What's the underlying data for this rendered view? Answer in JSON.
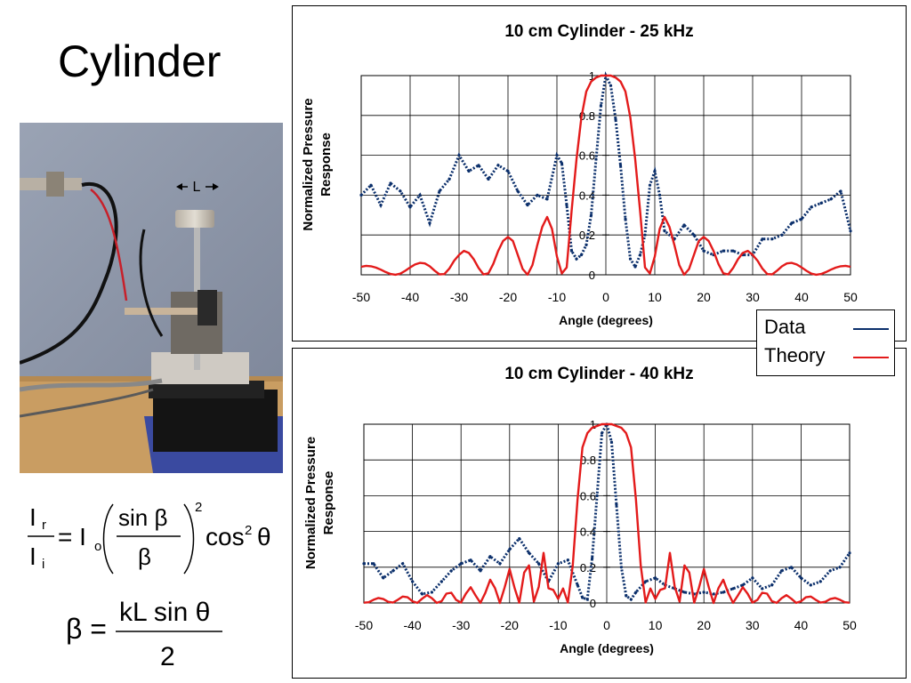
{
  "slide": {
    "title": "Cylinder"
  },
  "photo": {
    "label": "L"
  },
  "legend": [
    {
      "name": "Data",
      "color": "#0b2f6b"
    },
    {
      "name": "Theory",
      "color": "#e31b1b"
    }
  ],
  "formula": {
    "line1": {
      "ir": "I",
      "ir_sub": "r",
      "ii": "I",
      "ii_sub": "i",
      "eq": "= I",
      "io_sub": "o",
      "num": "sin β",
      "den": "β",
      "pow": "2",
      "tail": "cos",
      "tail_pow": "2",
      "theta": "θ"
    },
    "line2": {
      "lhs": "β =",
      "num": "kL sin θ",
      "den": "2"
    }
  },
  "chart_data": [
    {
      "type": "line",
      "title": "10 cm Cylinder - 25 kHz",
      "xlabel": "Angle (degrees)",
      "ylabel": "Normalized Pressure Response",
      "xlim": [
        -50,
        50
      ],
      "ylim": [
        0,
        1
      ],
      "xticks": [
        "-50",
        "-40",
        "-30",
        "-20",
        "-10",
        "0",
        "10",
        "20",
        "30",
        "40",
        "50"
      ],
      "yticks": [
        "0",
        "0.2",
        "0.4",
        "0.6",
        "0.8",
        "1"
      ],
      "grid": true,
      "series": [
        {
          "name": "Data",
          "x": [
            -50,
            -48,
            -46,
            -44,
            -42,
            -40,
            -38,
            -36,
            -34,
            -32,
            -30,
            -28,
            -26,
            -24,
            -22,
            -20,
            -18,
            -16,
            -14,
            -12,
            -10,
            -9,
            -8,
            -7,
            -6,
            -5,
            -4,
            -3,
            -2,
            -1,
            0,
            1,
            2,
            3,
            4,
            5,
            6,
            7,
            8,
            9,
            10,
            11,
            12,
            14,
            16,
            18,
            20,
            22,
            24,
            26,
            28,
            30,
            32,
            34,
            36,
            38,
            40,
            42,
            44,
            46,
            48,
            50
          ],
          "y": [
            0.4,
            0.45,
            0.35,
            0.46,
            0.42,
            0.34,
            0.4,
            0.26,
            0.42,
            0.48,
            0.6,
            0.52,
            0.55,
            0.48,
            0.55,
            0.52,
            0.42,
            0.35,
            0.4,
            0.38,
            0.6,
            0.56,
            0.35,
            0.12,
            0.08,
            0.1,
            0.15,
            0.3,
            0.58,
            0.85,
            1.0,
            0.95,
            0.78,
            0.55,
            0.28,
            0.08,
            0.04,
            0.1,
            0.2,
            0.45,
            0.52,
            0.4,
            0.22,
            0.18,
            0.25,
            0.2,
            0.12,
            0.1,
            0.12,
            0.12,
            0.1,
            0.1,
            0.18,
            0.18,
            0.2,
            0.26,
            0.28,
            0.34,
            0.36,
            0.38,
            0.42,
            0.22
          ]
        },
        {
          "name": "Theory",
          "x": [
            -50,
            -49,
            -48,
            -47,
            -46,
            -45,
            -44,
            -43,
            -42,
            -41,
            -40,
            -39,
            -38,
            -37,
            -36,
            -35,
            -34,
            -33,
            -32,
            -31,
            -30,
            -29,
            -28,
            -27,
            -26,
            -25,
            -24,
            -23,
            -22,
            -21,
            -20,
            -19,
            -18,
            -17,
            -16,
            -15,
            -14,
            -13,
            -12,
            -11,
            -10,
            -9,
            -8,
            -7,
            -6,
            -5,
            -4,
            -3,
            -2,
            -1,
            0,
            1,
            2,
            3,
            4,
            5,
            6,
            7,
            8,
            9,
            10,
            11,
            12,
            13,
            14,
            15,
            16,
            17,
            18,
            19,
            20,
            21,
            22,
            23,
            24,
            25,
            26,
            27,
            28,
            29,
            30,
            31,
            32,
            33,
            34,
            35,
            36,
            37,
            38,
            39,
            40,
            41,
            42,
            43,
            44,
            45,
            46,
            47,
            48,
            49,
            50
          ],
          "y": [
            0.04,
            0.045,
            0.043,
            0.036,
            0.026,
            0.014,
            0.004,
            0.0005,
            0.0059,
            0.02,
            0.037,
            0.052,
            0.06,
            0.057,
            0.043,
            0.021,
            0.0021,
            0.0036,
            0.031,
            0.071,
            0.1,
            0.12,
            0.11,
            0.078,
            0.034,
            0.0018,
            0.0075,
            0.055,
            0.12,
            0.17,
            0.19,
            0.17,
            0.1,
            0.029,
            0.0003,
            0.049,
            0.15,
            0.24,
            0.29,
            0.23,
            0.092,
            0.0066,
            0.037,
            0.32,
            0.58,
            0.79,
            0.92,
            0.97,
            0.99,
            1.0,
            1.0,
            1.0,
            0.99,
            0.97,
            0.92,
            0.79,
            0.58,
            0.32,
            0.037,
            0.0066,
            0.092,
            0.23,
            0.29,
            0.24,
            0.15,
            0.049,
            0.0003,
            0.029,
            0.1,
            0.17,
            0.19,
            0.17,
            0.12,
            0.055,
            0.0075,
            0.0018,
            0.034,
            0.078,
            0.11,
            0.12,
            0.1,
            0.071,
            0.031,
            0.0036,
            0.0021,
            0.021,
            0.043,
            0.057,
            0.06,
            0.052,
            0.037,
            0.02,
            0.0059,
            0.0005,
            0.004,
            0.014,
            0.026,
            0.036,
            0.043,
            0.045,
            0.04
          ]
        }
      ]
    },
    {
      "type": "line",
      "title": "10 cm Cylinder - 40 kHz",
      "xlabel": "Angle (degrees)",
      "ylabel": "Normalized Pressure Response",
      "xlim": [
        -50,
        50
      ],
      "ylim": [
        0,
        1
      ],
      "xticks": [
        "-50",
        "-40",
        "-30",
        "-20",
        "-10",
        "0",
        "10",
        "20",
        "30",
        "40",
        "50"
      ],
      "yticks": [
        "0",
        "0.2",
        "0.4",
        "0.6",
        "0.8",
        "1"
      ],
      "grid": true,
      "series": [
        {
          "name": "Data",
          "x": [
            -50,
            -48,
            -46,
            -44,
            -42,
            -40,
            -38,
            -36,
            -34,
            -32,
            -30,
            -28,
            -26,
            -24,
            -22,
            -20,
            -18,
            -16,
            -14,
            -12,
            -10,
            -8,
            -6,
            -5,
            -4,
            -3,
            -2,
            -1,
            0,
            1,
            2,
            3,
            4,
            5,
            6,
            8,
            10,
            12,
            14,
            16,
            18,
            20,
            22,
            24,
            26,
            28,
            30,
            32,
            34,
            36,
            38,
            40,
            42,
            44,
            46,
            48,
            50
          ],
          "y": [
            0.22,
            0.22,
            0.14,
            0.18,
            0.22,
            0.12,
            0.05,
            0.06,
            0.12,
            0.18,
            0.22,
            0.24,
            0.18,
            0.26,
            0.22,
            0.3,
            0.36,
            0.28,
            0.22,
            0.12,
            0.22,
            0.24,
            0.1,
            0.03,
            0.02,
            0.25,
            0.6,
            0.95,
            1.0,
            0.9,
            0.55,
            0.2,
            0.04,
            0.02,
            0.06,
            0.12,
            0.14,
            0.1,
            0.08,
            0.06,
            0.05,
            0.06,
            0.05,
            0.06,
            0.08,
            0.1,
            0.14,
            0.08,
            0.1,
            0.18,
            0.2,
            0.14,
            0.1,
            0.12,
            0.18,
            0.2,
            0.28
          ]
        },
        {
          "name": "Theory",
          "x": [
            -50,
            -49,
            -48,
            -47,
            -46,
            -45,
            -44,
            -43,
            -42,
            -41,
            -40,
            -39,
            -38,
            -37,
            -36,
            -35,
            -34,
            -33,
            -32,
            -31,
            -30,
            -29,
            -28,
            -27,
            -26,
            -25,
            -24,
            -23,
            -22,
            -21,
            -20,
            -19,
            -18,
            -17,
            -16,
            -15,
            -14,
            -13,
            -12,
            -11,
            -10,
            -9,
            -8,
            -7,
            -6,
            -5,
            -4,
            -3,
            -2,
            -1,
            0,
            1,
            2,
            3,
            4,
            5,
            6,
            7,
            8,
            9,
            10,
            11,
            12,
            13,
            14,
            15,
            16,
            17,
            18,
            19,
            20,
            21,
            22,
            23,
            24,
            25,
            26,
            27,
            28,
            29,
            30,
            31,
            32,
            33,
            34,
            35,
            36,
            37,
            38,
            39,
            40,
            41,
            42,
            43,
            44,
            45,
            46,
            47,
            48,
            49,
            50
          ],
          "y": [
            0.0017,
            0.0042,
            0.018,
            0.028,
            0.022,
            0.0065,
            0.0025,
            0.018,
            0.036,
            0.032,
            0.0097,
            0.0006,
            0.024,
            0.044,
            0.027,
            0.0006,
            0.01,
            0.052,
            0.057,
            0.017,
            0.0018,
            0.052,
            0.088,
            0.042,
            0.0003,
            0.056,
            0.13,
            0.083,
            0.0002,
            0.088,
            0.19,
            0.086,
            0.0014,
            0.17,
            0.21,
            0.0075,
            0.091,
            0.28,
            0.082,
            0.073,
            0.023,
            0.081,
            0.0025,
            0.21,
            0.58,
            0.87,
            0.95,
            0.98,
            0.99,
            1.0,
            1.0,
            1.0,
            0.99,
            0.98,
            0.95,
            0.87,
            0.58,
            0.21,
            0.0025,
            0.081,
            0.023,
            0.073,
            0.082,
            0.28,
            0.091,
            0.0075,
            0.21,
            0.17,
            0.0014,
            0.086,
            0.19,
            0.088,
            0.0002,
            0.083,
            0.13,
            0.056,
            0.0003,
            0.042,
            0.088,
            0.052,
            0.0018,
            0.017,
            0.057,
            0.052,
            0.01,
            0.0006,
            0.027,
            0.044,
            0.024,
            0.0006,
            0.0097,
            0.032,
            0.036,
            0.018,
            0.0025,
            0.0065,
            0.022,
            0.028,
            0.018,
            0.0042,
            0.0017
          ]
        }
      ]
    }
  ]
}
